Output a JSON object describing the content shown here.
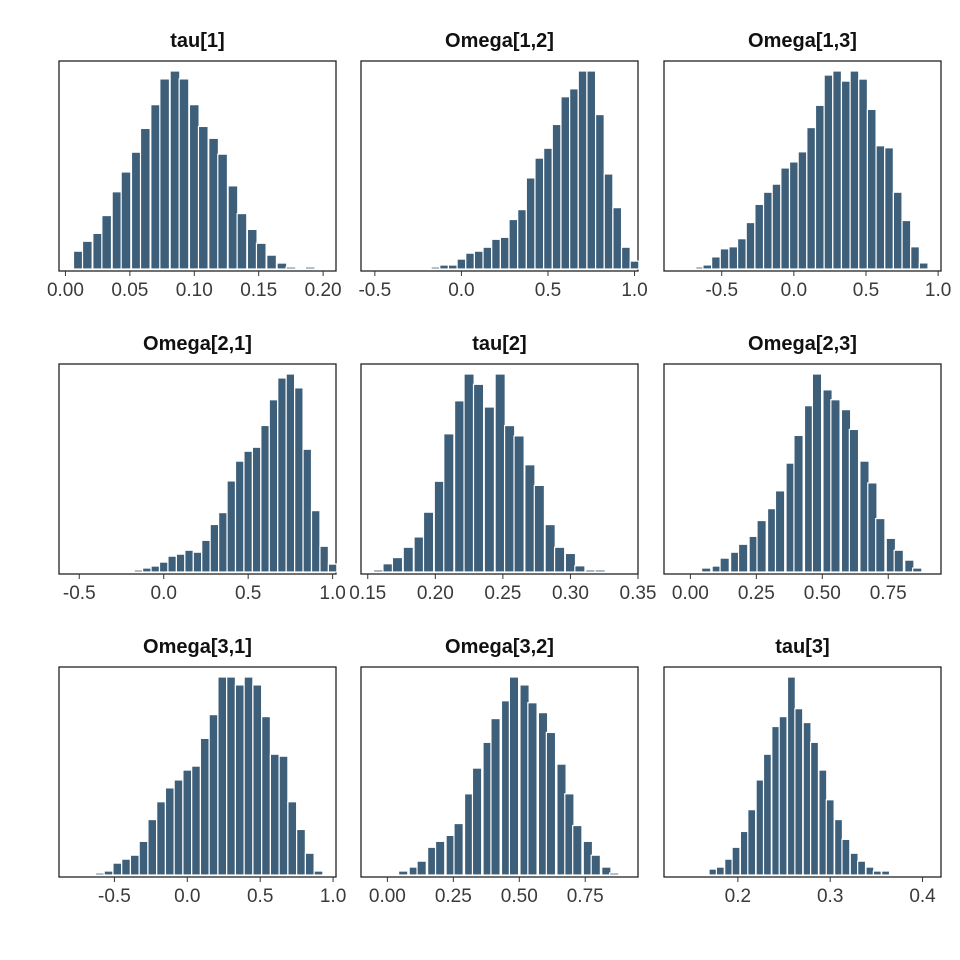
{
  "figure": {
    "bar_color": "#3d5f7a"
  },
  "chart_data": [
    {
      "type": "bar",
      "title": "tau[1]",
      "xlabel": "",
      "ylabel": "",
      "xlim": [
        -0.005,
        0.21
      ],
      "ticks": [
        0.0,
        0.05,
        0.1,
        0.15,
        0.2
      ],
      "tick_labels": [
        "0.00",
        "0.05",
        "0.10",
        "0.15",
        "0.20"
      ],
      "bin_width": 0.0075,
      "bins": [
        {
          "x": 0.01,
          "y": 9
        },
        {
          "x": 0.017,
          "y": 14
        },
        {
          "x": 0.025,
          "y": 18
        },
        {
          "x": 0.032,
          "y": 27
        },
        {
          "x": 0.04,
          "y": 39
        },
        {
          "x": 0.047,
          "y": 49
        },
        {
          "x": 0.055,
          "y": 59
        },
        {
          "x": 0.062,
          "y": 71
        },
        {
          "x": 0.07,
          "y": 83
        },
        {
          "x": 0.077,
          "y": 96
        },
        {
          "x": 0.085,
          "y": 100
        },
        {
          "x": 0.092,
          "y": 96
        },
        {
          "x": 0.1,
          "y": 83
        },
        {
          "x": 0.107,
          "y": 72
        },
        {
          "x": 0.115,
          "y": 66
        },
        {
          "x": 0.122,
          "y": 58
        },
        {
          "x": 0.13,
          "y": 42
        },
        {
          "x": 0.137,
          "y": 28
        },
        {
          "x": 0.145,
          "y": 20
        },
        {
          "x": 0.152,
          "y": 13
        },
        {
          "x": 0.16,
          "y": 7
        },
        {
          "x": 0.168,
          "y": 3
        },
        {
          "x": 0.175,
          "y": 1
        },
        {
          "x": 0.19,
          "y": 1
        }
      ]
    },
    {
      "type": "bar",
      "title": "Omega[1,2]",
      "xlabel": "",
      "ylabel": "",
      "xlim": [
        -0.58,
        1.02
      ],
      "ticks": [
        -0.5,
        0.0,
        0.5,
        1.0
      ],
      "tick_labels": [
        "-0.5",
        "0.0",
        "0.5",
        "1.0"
      ],
      "bin_width": 0.05,
      "bins": [
        {
          "x": -0.25,
          "y": 0.5
        },
        {
          "x": -0.15,
          "y": 1
        },
        {
          "x": -0.1,
          "y": 2
        },
        {
          "x": -0.05,
          "y": 2
        },
        {
          "x": 0.0,
          "y": 5
        },
        {
          "x": 0.05,
          "y": 8
        },
        {
          "x": 0.1,
          "y": 9
        },
        {
          "x": 0.15,
          "y": 11
        },
        {
          "x": 0.2,
          "y": 15
        },
        {
          "x": 0.25,
          "y": 16
        },
        {
          "x": 0.3,
          "y": 25
        },
        {
          "x": 0.35,
          "y": 30
        },
        {
          "x": 0.4,
          "y": 46
        },
        {
          "x": 0.45,
          "y": 56
        },
        {
          "x": 0.5,
          "y": 61
        },
        {
          "x": 0.55,
          "y": 73
        },
        {
          "x": 0.6,
          "y": 87
        },
        {
          "x": 0.65,
          "y": 91
        },
        {
          "x": 0.7,
          "y": 100
        },
        {
          "x": 0.75,
          "y": 100
        },
        {
          "x": 0.8,
          "y": 78
        },
        {
          "x": 0.85,
          "y": 48
        },
        {
          "x": 0.9,
          "y": 31
        },
        {
          "x": 0.95,
          "y": 11
        },
        {
          "x": 1.0,
          "y": 4
        }
      ]
    },
    {
      "type": "bar",
      "title": "Omega[1,3]",
      "xlabel": "",
      "ylabel": "",
      "xlim": [
        -0.9,
        1.02
      ],
      "ticks": [
        -0.5,
        0.0,
        0.5,
        1.0
      ],
      "tick_labels": [
        "-0.5",
        "0.0",
        "0.5",
        "1.0"
      ],
      "bin_width": 0.06,
      "bins": [
        {
          "x": -0.65,
          "y": 1
        },
        {
          "x": -0.6,
          "y": 2
        },
        {
          "x": -0.54,
          "y": 6
        },
        {
          "x": -0.48,
          "y": 10
        },
        {
          "x": -0.42,
          "y": 11
        },
        {
          "x": -0.36,
          "y": 15
        },
        {
          "x": -0.3,
          "y": 23
        },
        {
          "x": -0.24,
          "y": 32
        },
        {
          "x": -0.18,
          "y": 38
        },
        {
          "x": -0.12,
          "y": 42
        },
        {
          "x": -0.06,
          "y": 50
        },
        {
          "x": 0.0,
          "y": 53
        },
        {
          "x": 0.06,
          "y": 58
        },
        {
          "x": 0.12,
          "y": 70
        },
        {
          "x": 0.18,
          "y": 81
        },
        {
          "x": 0.24,
          "y": 96
        },
        {
          "x": 0.3,
          "y": 98
        },
        {
          "x": 0.36,
          "y": 93
        },
        {
          "x": 0.42,
          "y": 98
        },
        {
          "x": 0.48,
          "y": 94
        },
        {
          "x": 0.54,
          "y": 79
        },
        {
          "x": 0.6,
          "y": 61
        },
        {
          "x": 0.66,
          "y": 60
        },
        {
          "x": 0.72,
          "y": 38
        },
        {
          "x": 0.78,
          "y": 24
        },
        {
          "x": 0.84,
          "y": 11
        },
        {
          "x": 0.9,
          "y": 3
        }
      ]
    },
    {
      "type": "bar",
      "title": "Omega[2,1]",
      "xlabel": "",
      "ylabel": "",
      "xlim": [
        -0.62,
        1.02
      ],
      "ticks": [
        -0.5,
        0.0,
        0.5,
        1.0
      ],
      "tick_labels": [
        "-0.5",
        "0.0",
        "0.5",
        "1.0"
      ],
      "bin_width": 0.05,
      "bins": [
        {
          "x": -0.25,
          "y": 0.5
        },
        {
          "x": -0.15,
          "y": 1
        },
        {
          "x": -0.1,
          "y": 2
        },
        {
          "x": -0.05,
          "y": 3
        },
        {
          "x": 0.0,
          "y": 5
        },
        {
          "x": 0.05,
          "y": 8
        },
        {
          "x": 0.1,
          "y": 9
        },
        {
          "x": 0.15,
          "y": 11
        },
        {
          "x": 0.2,
          "y": 10
        },
        {
          "x": 0.25,
          "y": 16
        },
        {
          "x": 0.3,
          "y": 24
        },
        {
          "x": 0.35,
          "y": 30
        },
        {
          "x": 0.4,
          "y": 46
        },
        {
          "x": 0.45,
          "y": 56
        },
        {
          "x": 0.5,
          "y": 61
        },
        {
          "x": 0.55,
          "y": 63
        },
        {
          "x": 0.6,
          "y": 74
        },
        {
          "x": 0.65,
          "y": 87
        },
        {
          "x": 0.7,
          "y": 98
        },
        {
          "x": 0.75,
          "y": 100
        },
        {
          "x": 0.8,
          "y": 93
        },
        {
          "x": 0.85,
          "y": 62
        },
        {
          "x": 0.9,
          "y": 31
        },
        {
          "x": 0.95,
          "y": 13
        },
        {
          "x": 1.0,
          "y": 4
        }
      ]
    },
    {
      "type": "bar",
      "title": "tau[2]",
      "xlabel": "",
      "ylabel": "",
      "xlim": [
        0.145,
        0.35
      ],
      "ticks": [
        0.15,
        0.2,
        0.25,
        0.3,
        0.35
      ],
      "tick_labels": [
        "0.15",
        "0.20",
        "0.25",
        "0.30",
        "0.35"
      ],
      "bin_width": 0.0075,
      "bins": [
        {
          "x": 0.158,
          "y": 1
        },
        {
          "x": 0.165,
          "y": 4
        },
        {
          "x": 0.172,
          "y": 7
        },
        {
          "x": 0.18,
          "y": 12
        },
        {
          "x": 0.188,
          "y": 17
        },
        {
          "x": 0.195,
          "y": 29
        },
        {
          "x": 0.203,
          "y": 44
        },
        {
          "x": 0.21,
          "y": 67
        },
        {
          "x": 0.218,
          "y": 83
        },
        {
          "x": 0.225,
          "y": 96
        },
        {
          "x": 0.232,
          "y": 91
        },
        {
          "x": 0.24,
          "y": 80
        },
        {
          "x": 0.248,
          "y": 96
        },
        {
          "x": 0.255,
          "y": 71
        },
        {
          "x": 0.262,
          "y": 66
        },
        {
          "x": 0.27,
          "y": 52
        },
        {
          "x": 0.277,
          "y": 42
        },
        {
          "x": 0.285,
          "y": 23
        },
        {
          "x": 0.292,
          "y": 12
        },
        {
          "x": 0.3,
          "y": 9
        },
        {
          "x": 0.307,
          "y": 3
        },
        {
          "x": 0.315,
          "y": 1
        },
        {
          "x": 0.322,
          "y": 1
        },
        {
          "x": 0.33,
          "y": 0.5
        }
      ]
    },
    {
      "type": "bar",
      "title": "Omega[2,3]",
      "xlabel": "",
      "ylabel": "",
      "xlim": [
        -0.1,
        0.95
      ],
      "ticks": [
        0.0,
        0.25,
        0.5,
        0.75
      ],
      "tick_labels": [
        "0.00",
        "0.25",
        "0.50",
        "0.75"
      ],
      "bin_width": 0.035,
      "bins": [
        {
          "x": 0.01,
          "y": 0.5
        },
        {
          "x": 0.06,
          "y": 2
        },
        {
          "x": 0.1,
          "y": 3
        },
        {
          "x": 0.13,
          "y": 7
        },
        {
          "x": 0.17,
          "y": 10
        },
        {
          "x": 0.2,
          "y": 14
        },
        {
          "x": 0.24,
          "y": 18
        },
        {
          "x": 0.27,
          "y": 26
        },
        {
          "x": 0.31,
          "y": 32
        },
        {
          "x": 0.34,
          "y": 41
        },
        {
          "x": 0.38,
          "y": 55
        },
        {
          "x": 0.41,
          "y": 69
        },
        {
          "x": 0.45,
          "y": 84
        },
        {
          "x": 0.48,
          "y": 100
        },
        {
          "x": 0.52,
          "y": 92
        },
        {
          "x": 0.55,
          "y": 87
        },
        {
          "x": 0.59,
          "y": 82
        },
        {
          "x": 0.62,
          "y": 72
        },
        {
          "x": 0.66,
          "y": 56
        },
        {
          "x": 0.69,
          "y": 45
        },
        {
          "x": 0.72,
          "y": 27
        },
        {
          "x": 0.76,
          "y": 17
        },
        {
          "x": 0.79,
          "y": 11
        },
        {
          "x": 0.83,
          "y": 6
        },
        {
          "x": 0.86,
          "y": 2
        },
        {
          "x": 0.9,
          "y": 0.5
        }
      ]
    },
    {
      "type": "bar",
      "title": "Omega[3,1]",
      "xlabel": "",
      "ylabel": "",
      "xlim": [
        -0.88,
        1.02
      ],
      "ticks": [
        -0.5,
        0.0,
        0.5,
        1.0
      ],
      "tick_labels": [
        "-0.5",
        "0.0",
        "0.5",
        "1.0"
      ],
      "bin_width": 0.06,
      "bins": [
        {
          "x": -0.6,
          "y": 1
        },
        {
          "x": -0.54,
          "y": 2
        },
        {
          "x": -0.48,
          "y": 6
        },
        {
          "x": -0.42,
          "y": 8
        },
        {
          "x": -0.36,
          "y": 10
        },
        {
          "x": -0.3,
          "y": 17
        },
        {
          "x": -0.24,
          "y": 28
        },
        {
          "x": -0.18,
          "y": 37
        },
        {
          "x": -0.12,
          "y": 44
        },
        {
          "x": -0.06,
          "y": 48
        },
        {
          "x": 0.0,
          "y": 53
        },
        {
          "x": 0.06,
          "y": 55
        },
        {
          "x": 0.12,
          "y": 69
        },
        {
          "x": 0.18,
          "y": 81
        },
        {
          "x": 0.24,
          "y": 100
        },
        {
          "x": 0.3,
          "y": 100
        },
        {
          "x": 0.36,
          "y": 96
        },
        {
          "x": 0.42,
          "y": 100
        },
        {
          "x": 0.48,
          "y": 96
        },
        {
          "x": 0.54,
          "y": 80
        },
        {
          "x": 0.6,
          "y": 61
        },
        {
          "x": 0.66,
          "y": 60
        },
        {
          "x": 0.72,
          "y": 37
        },
        {
          "x": 0.78,
          "y": 23
        },
        {
          "x": 0.84,
          "y": 11
        },
        {
          "x": 0.9,
          "y": 2
        }
      ]
    },
    {
      "type": "bar",
      "title": "Omega[3,2]",
      "xlabel": "",
      "ylabel": "",
      "xlim": [
        -0.1,
        0.95
      ],
      "ticks": [
        0.0,
        0.25,
        0.5,
        0.75
      ],
      "tick_labels": [
        "0.00",
        "0.25",
        "0.50",
        "0.75"
      ],
      "bin_width": 0.035,
      "bins": [
        {
          "x": 0.01,
          "y": 0.5
        },
        {
          "x": 0.06,
          "y": 2
        },
        {
          "x": 0.1,
          "y": 4
        },
        {
          "x": 0.13,
          "y": 7
        },
        {
          "x": 0.17,
          "y": 14
        },
        {
          "x": 0.2,
          "y": 17
        },
        {
          "x": 0.24,
          "y": 20
        },
        {
          "x": 0.27,
          "y": 26
        },
        {
          "x": 0.31,
          "y": 41
        },
        {
          "x": 0.34,
          "y": 54
        },
        {
          "x": 0.38,
          "y": 67
        },
        {
          "x": 0.41,
          "y": 79
        },
        {
          "x": 0.45,
          "y": 88
        },
        {
          "x": 0.48,
          "y": 100
        },
        {
          "x": 0.52,
          "y": 96
        },
        {
          "x": 0.55,
          "y": 87
        },
        {
          "x": 0.59,
          "y": 82
        },
        {
          "x": 0.62,
          "y": 72
        },
        {
          "x": 0.66,
          "y": 56
        },
        {
          "x": 0.69,
          "y": 41
        },
        {
          "x": 0.72,
          "y": 25
        },
        {
          "x": 0.76,
          "y": 17
        },
        {
          "x": 0.79,
          "y": 10
        },
        {
          "x": 0.83,
          "y": 4
        },
        {
          "x": 0.86,
          "y": 1
        }
      ]
    },
    {
      "type": "bar",
      "title": "tau[3]",
      "xlabel": "",
      "ylabel": "",
      "xlim": [
        0.12,
        0.42
      ],
      "ticks": [
        0.2,
        0.3,
        0.4
      ],
      "tick_labels": [
        "0.2",
        "0.3",
        "0.4"
      ],
      "bin_width": 0.0085,
      "bins": [
        {
          "x": 0.173,
          "y": 3
        },
        {
          "x": 0.181,
          "y": 4
        },
        {
          "x": 0.19,
          "y": 8
        },
        {
          "x": 0.198,
          "y": 14
        },
        {
          "x": 0.207,
          "y": 22
        },
        {
          "x": 0.215,
          "y": 33
        },
        {
          "x": 0.224,
          "y": 48
        },
        {
          "x": 0.232,
          "y": 61
        },
        {
          "x": 0.241,
          "y": 75
        },
        {
          "x": 0.249,
          "y": 80
        },
        {
          "x": 0.258,
          "y": 100
        },
        {
          "x": 0.266,
          "y": 84
        },
        {
          "x": 0.275,
          "y": 77
        },
        {
          "x": 0.283,
          "y": 67
        },
        {
          "x": 0.292,
          "y": 53
        },
        {
          "x": 0.3,
          "y": 38
        },
        {
          "x": 0.309,
          "y": 28
        },
        {
          "x": 0.317,
          "y": 18
        },
        {
          "x": 0.326,
          "y": 11
        },
        {
          "x": 0.334,
          "y": 7
        },
        {
          "x": 0.343,
          "y": 4
        },
        {
          "x": 0.351,
          "y": 2
        },
        {
          "x": 0.36,
          "y": 2
        }
      ]
    }
  ]
}
